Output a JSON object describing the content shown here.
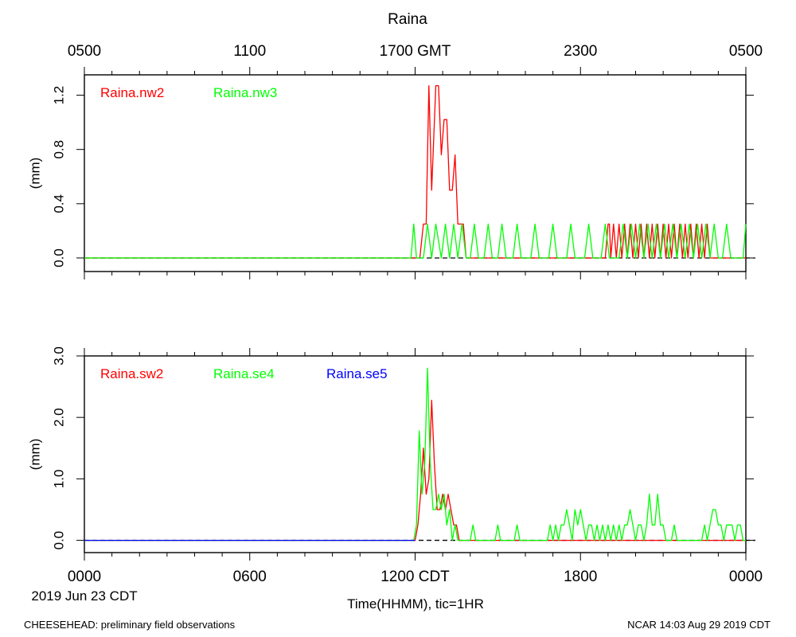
{
  "title": "Raina",
  "footer": {
    "left": "CHEESEHEAD: preliminary field observations",
    "right": "NCAR 14:03 Aug 29 2019 CDT"
  },
  "axes": {
    "top_ticks": [
      "0500",
      "1100",
      "1700 GMT",
      "2300",
      "0500"
    ],
    "bottom_ticks": [
      "0000",
      "0600",
      "1200 CDT",
      "1800",
      "0000"
    ],
    "date_label": "2019 Jun 23 CDT",
    "xlabel": "Time(HHMM), tic=1HR",
    "x_range_hours": [
      0,
      24
    ],
    "tick_step_hours": 1
  },
  "colors": {
    "red": "#ff0000",
    "green": "#00ff00",
    "blue": "#0000ff",
    "zero": "#000000"
  },
  "chart_data": [
    {
      "type": "line",
      "ylabel": "(mm)",
      "ylim": [
        -0.1,
        1.35
      ],
      "yticks": [
        0.0,
        0.4,
        0.8,
        1.2
      ],
      "ytick_labels": [
        "0.0",
        "0.4",
        "0.8",
        "1.2"
      ],
      "series": [
        {
          "name": "Raina.nw2",
          "color": "#ff0000",
          "x": [
            0,
            12.0,
            12.17,
            12.3,
            12.4,
            12.5,
            12.6,
            12.75,
            12.85,
            12.95,
            13.05,
            13.15,
            13.25,
            13.35,
            13.45,
            13.55,
            13.65,
            13.75,
            13.85,
            14.0,
            18.9,
            19.0,
            19.05,
            19.1,
            19.2,
            19.3,
            19.4,
            19.5,
            19.6,
            19.7,
            19.8,
            19.9,
            20.0,
            20.1,
            20.2,
            20.3,
            20.4,
            20.5,
            20.6,
            20.7,
            20.8,
            20.9,
            21.0,
            21.1,
            21.2,
            21.3,
            21.4,
            21.5,
            21.6,
            21.7,
            21.8,
            21.9,
            22.0,
            22.1,
            22.2,
            22.3,
            22.4,
            22.5,
            22.6,
            22.7,
            24.0
          ],
          "y": [
            0,
            0,
            0,
            0.25,
            0.25,
            1.27,
            0.5,
            1.27,
            1.27,
            0.76,
            1.02,
            1.02,
            0.5,
            0.5,
            0.76,
            0.25,
            0.25,
            0.25,
            0,
            0,
            0,
            0.25,
            0.25,
            0,
            0.25,
            0,
            0.25,
            0,
            0.25,
            0,
            0.25,
            0,
            0.25,
            0,
            0.25,
            0,
            0.25,
            0,
            0.25,
            0,
            0.25,
            0,
            0.25,
            0,
            0.25,
            0,
            0.25,
            0,
            0.25,
            0,
            0.25,
            0,
            0.25,
            0,
            0.25,
            0,
            0.25,
            0,
            0.25,
            0,
            0
          ]
        },
        {
          "name": "Raina.nw3",
          "color": "#00ff00",
          "x": [
            0,
            11.85,
            11.95,
            12.05,
            12.3,
            12.45,
            12.6,
            12.75,
            12.95,
            13.1,
            13.25,
            13.4,
            13.55,
            13.7,
            13.85,
            14.0,
            14.15,
            14.3,
            14.5,
            14.65,
            14.8,
            15.0,
            15.15,
            15.3,
            15.55,
            15.7,
            15.85,
            16.2,
            16.35,
            16.5,
            16.85,
            17.0,
            17.15,
            17.5,
            17.65,
            17.8,
            18.15,
            18.3,
            18.45,
            18.75,
            18.9,
            19.05,
            19.4,
            19.55,
            19.7,
            19.85,
            20.0,
            20.15,
            20.3,
            20.45,
            20.6,
            20.75,
            20.9,
            21.05,
            21.2,
            21.35,
            21.5,
            21.65,
            21.8,
            21.95,
            22.1,
            22.25,
            22.4,
            22.55,
            22.7,
            22.85,
            23.0,
            23.15,
            23.3,
            23.45,
            23.6,
            23.75,
            23.9,
            24.0
          ],
          "y": [
            0,
            0,
            0.25,
            0,
            0,
            0.25,
            0,
            0.25,
            0,
            0.25,
            0,
            0.25,
            0,
            0.25,
            0,
            0,
            0.25,
            0,
            0,
            0.25,
            0,
            0,
            0.25,
            0,
            0,
            0.25,
            0,
            0,
            0.25,
            0,
            0,
            0.25,
            0,
            0,
            0.25,
            0,
            0,
            0.25,
            0,
            0,
            0.25,
            0,
            0,
            0.25,
            0,
            0.25,
            0,
            0.25,
            0,
            0.25,
            0,
            0.25,
            0,
            0.25,
            0,
            0.25,
            0,
            0.25,
            0,
            0.25,
            0,
            0.25,
            0,
            0.25,
            0,
            0.25,
            0,
            0,
            0.25,
            0,
            0,
            0,
            0,
            0.25
          ]
        }
      ]
    },
    {
      "type": "line",
      "ylabel": "(mm)",
      "ylim": [
        -0.2,
        3.0
      ],
      "yticks": [
        0.0,
        1.0,
        2.0,
        3.0
      ],
      "ytick_labels": [
        "0.0",
        "1.0",
        "2.0",
        "3.0"
      ],
      "series": [
        {
          "name": "Raina.sw2",
          "color": "#ff0000",
          "x": [
            0,
            12.0,
            12.1,
            12.2,
            12.3,
            12.4,
            12.5,
            12.6,
            12.7,
            12.8,
            12.9,
            13.0,
            13.1,
            13.2,
            13.3,
            13.4,
            13.5,
            13.6,
            13.7,
            13.8,
            24.0
          ],
          "y": [
            0,
            0,
            0.25,
            0.75,
            1.5,
            0.75,
            1.0,
            2.28,
            1.25,
            0.5,
            0.5,
            0.75,
            0.5,
            0.75,
            0.5,
            0.25,
            0.25,
            0,
            0,
            0,
            0
          ]
        },
        {
          "name": "Raina.se4",
          "color": "#00ff00",
          "x": [
            0,
            11.95,
            12.05,
            12.15,
            12.25,
            12.35,
            12.45,
            12.55,
            12.65,
            12.75,
            12.85,
            12.95,
            13.05,
            13.15,
            13.25,
            13.35,
            13.45,
            13.55,
            13.65,
            13.75,
            13.85,
            14.0,
            14.1,
            14.2,
            14.3,
            14.9,
            15.0,
            15.1,
            15.6,
            15.7,
            15.8,
            16.8,
            16.9,
            17.0,
            17.1,
            17.2,
            17.3,
            17.4,
            17.5,
            17.6,
            17.7,
            17.8,
            17.9,
            18.0,
            18.1,
            18.2,
            18.3,
            18.4,
            18.5,
            18.6,
            18.7,
            18.8,
            18.9,
            19.0,
            19.1,
            19.2,
            19.3,
            19.4,
            19.5,
            19.6,
            19.7,
            19.8,
            19.9,
            20.0,
            20.1,
            20.2,
            20.3,
            20.4,
            20.5,
            20.6,
            20.7,
            20.8,
            20.9,
            21.0,
            21.1,
            21.2,
            21.3,
            21.4,
            21.5,
            22.4,
            22.5,
            22.6,
            22.7,
            22.8,
            22.9,
            23.0,
            23.1,
            23.2,
            23.3,
            23.4,
            23.5,
            23.6,
            23.7,
            23.8,
            23.9,
            24.0
          ],
          "y": [
            0,
            0,
            0.25,
            1.78,
            0.75,
            1.25,
            2.8,
            1.25,
            0.5,
            0.5,
            0.75,
            0.5,
            0.75,
            0.25,
            0.5,
            0,
            0.25,
            0,
            0,
            0,
            0,
            0,
            0.25,
            0,
            0,
            0,
            0.25,
            0,
            0,
            0.25,
            0,
            0,
            0.25,
            0,
            0.25,
            0,
            0.25,
            0.25,
            0.5,
            0.25,
            0,
            0.5,
            0.25,
            0.5,
            0.25,
            0,
            0.25,
            0.25,
            0,
            0.25,
            0,
            0.25,
            0,
            0.25,
            0,
            0.25,
            0,
            0.25,
            0,
            0.25,
            0.25,
            0.5,
            0.25,
            0,
            0.25,
            0.25,
            0,
            0.25,
            0.75,
            0.25,
            0.25,
            0.75,
            0.25,
            0.25,
            0,
            0,
            0,
            0.25,
            0,
            0,
            0.25,
            0,
            0.25,
            0.5,
            0.5,
            0.25,
            0.25,
            0,
            0.25,
            0.25,
            0.25,
            0,
            0.25,
            0.25,
            0,
            0
          ]
        },
        {
          "name": "Raina.se5",
          "color": "#0000ff",
          "x": [
            0,
            12.0
          ],
          "y": [
            0,
            0
          ]
        }
      ]
    }
  ]
}
